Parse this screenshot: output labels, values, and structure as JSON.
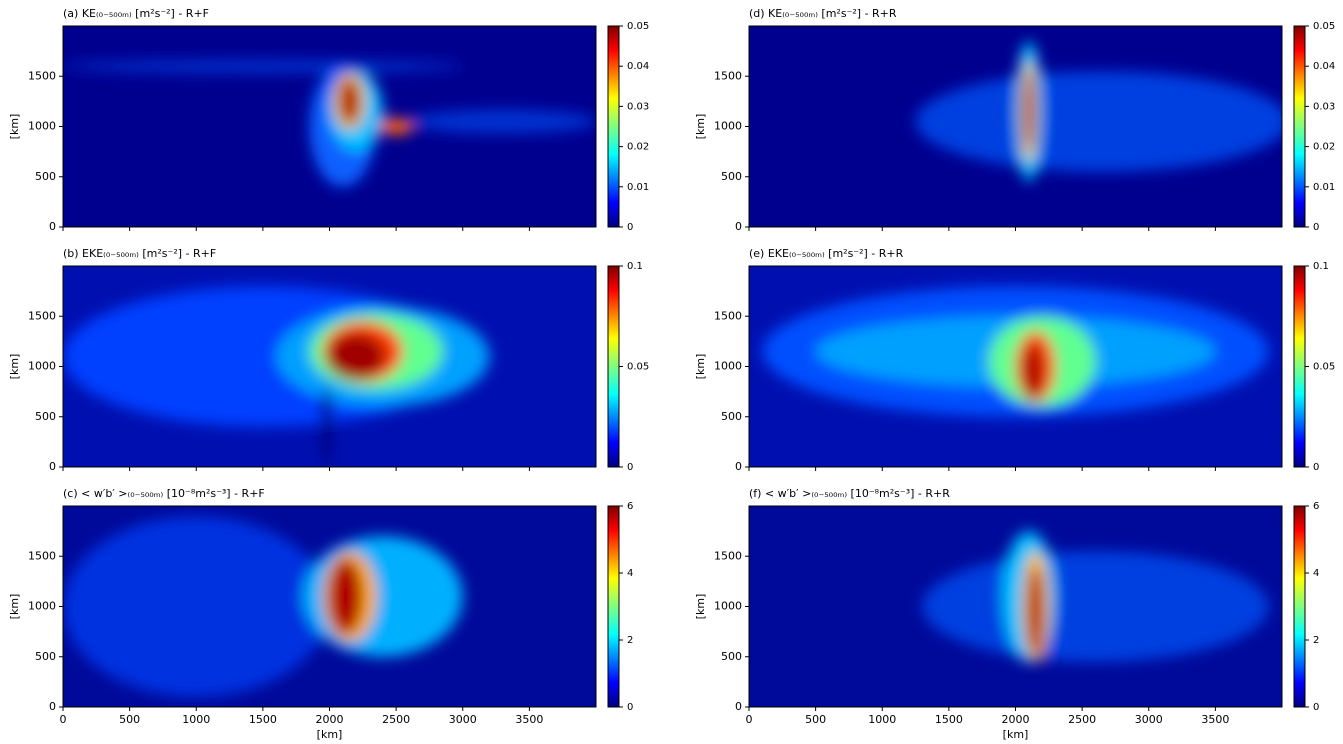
{
  "chart_data": [
    {
      "type": "heatmap",
      "title": "(a) KE₍₀₋₅₀₀ₘ₎ [m²s⁻²] - R+F",
      "ylabel": "[km]",
      "colormap": "jet",
      "xlim": [
        0,
        4000
      ],
      "xticks": [
        0,
        500,
        1000,
        1500,
        2000,
        2500,
        3000,
        3500
      ],
      "ylim": [
        0,
        2000
      ],
      "yticks": [
        0,
        500,
        1000,
        1500
      ],
      "colorbar": {
        "lim": [
          0,
          0.05
        ],
        "ticks": [
          0,
          0.01,
          0.02,
          0.03,
          0.04,
          0.05
        ]
      }
    },
    {
      "type": "heatmap",
      "title": "(b) EKE₍₀₋₅₀₀ₘ₎ [m²s⁻²] - R+F",
      "ylabel": "[km]",
      "colormap": "jet",
      "xlim": [
        0,
        4000
      ],
      "xticks": [
        0,
        500,
        1000,
        1500,
        2000,
        2500,
        3000,
        3500
      ],
      "ylim": [
        0,
        2000
      ],
      "yticks": [
        0,
        500,
        1000,
        1500
      ],
      "colorbar": {
        "lim": [
          0,
          0.1
        ],
        "ticks": [
          0,
          0.05,
          0.1
        ]
      }
    },
    {
      "type": "heatmap",
      "title": "(c) < w′b′ >₍₀₋₅₀₀ₘ₎ [10⁻⁸m²s⁻³] - R+F",
      "xlabel": "[km]",
      "ylabel": "[km]",
      "colormap": "jet",
      "xlim": [
        0,
        4000
      ],
      "xticks": [
        0,
        500,
        1000,
        1500,
        2000,
        2500,
        3000,
        3500
      ],
      "ylim": [
        0,
        2000
      ],
      "yticks": [
        0,
        500,
        1000,
        1500
      ],
      "colorbar": {
        "lim": [
          0,
          6
        ],
        "ticks": [
          0,
          2,
          4,
          6
        ]
      }
    },
    {
      "type": "heatmap",
      "title": "(d) KE₍₀₋₅₀₀ₘ₎ [m²s⁻²] - R+R",
      "ylabel": "[km]",
      "colormap": "jet",
      "xlim": [
        0,
        4000
      ],
      "xticks": [
        0,
        500,
        1000,
        1500,
        2000,
        2500,
        3000,
        3500
      ],
      "ylim": [
        0,
        2000
      ],
      "yticks": [
        0,
        500,
        1000,
        1500
      ],
      "colorbar": {
        "lim": [
          0,
          0.05
        ],
        "ticks": [
          0,
          0.01,
          0.02,
          0.03,
          0.04,
          0.05
        ]
      }
    },
    {
      "type": "heatmap",
      "title": "(e) EKE₍₀₋₅₀₀ₘ₎ [m²s⁻²] - R+R",
      "ylabel": "[km]",
      "colormap": "jet",
      "xlim": [
        0,
        4000
      ],
      "xticks": [
        0,
        500,
        1000,
        1500,
        2000,
        2500,
        3000,
        3500
      ],
      "ylim": [
        0,
        2000
      ],
      "yticks": [
        0,
        500,
        1000,
        1500
      ],
      "colorbar": {
        "lim": [
          0,
          0.1
        ],
        "ticks": [
          0,
          0.05,
          0.1
        ]
      }
    },
    {
      "type": "heatmap",
      "title": "(f) < w′b′ >₍₀₋₅₀₀ₘ₎ [10⁻⁸m²s⁻³] - R+R",
      "xlabel": "[km]",
      "ylabel": "[km]",
      "colormap": "jet",
      "xlim": [
        0,
        4000
      ],
      "xticks": [
        0,
        500,
        1000,
        1500,
        2000,
        2500,
        3000,
        3500
      ],
      "ylim": [
        0,
        2000
      ],
      "yticks": [
        0,
        500,
        1000,
        1500
      ],
      "colorbar": {
        "lim": [
          0,
          6
        ],
        "ticks": [
          0,
          2,
          4,
          6
        ]
      }
    }
  ]
}
